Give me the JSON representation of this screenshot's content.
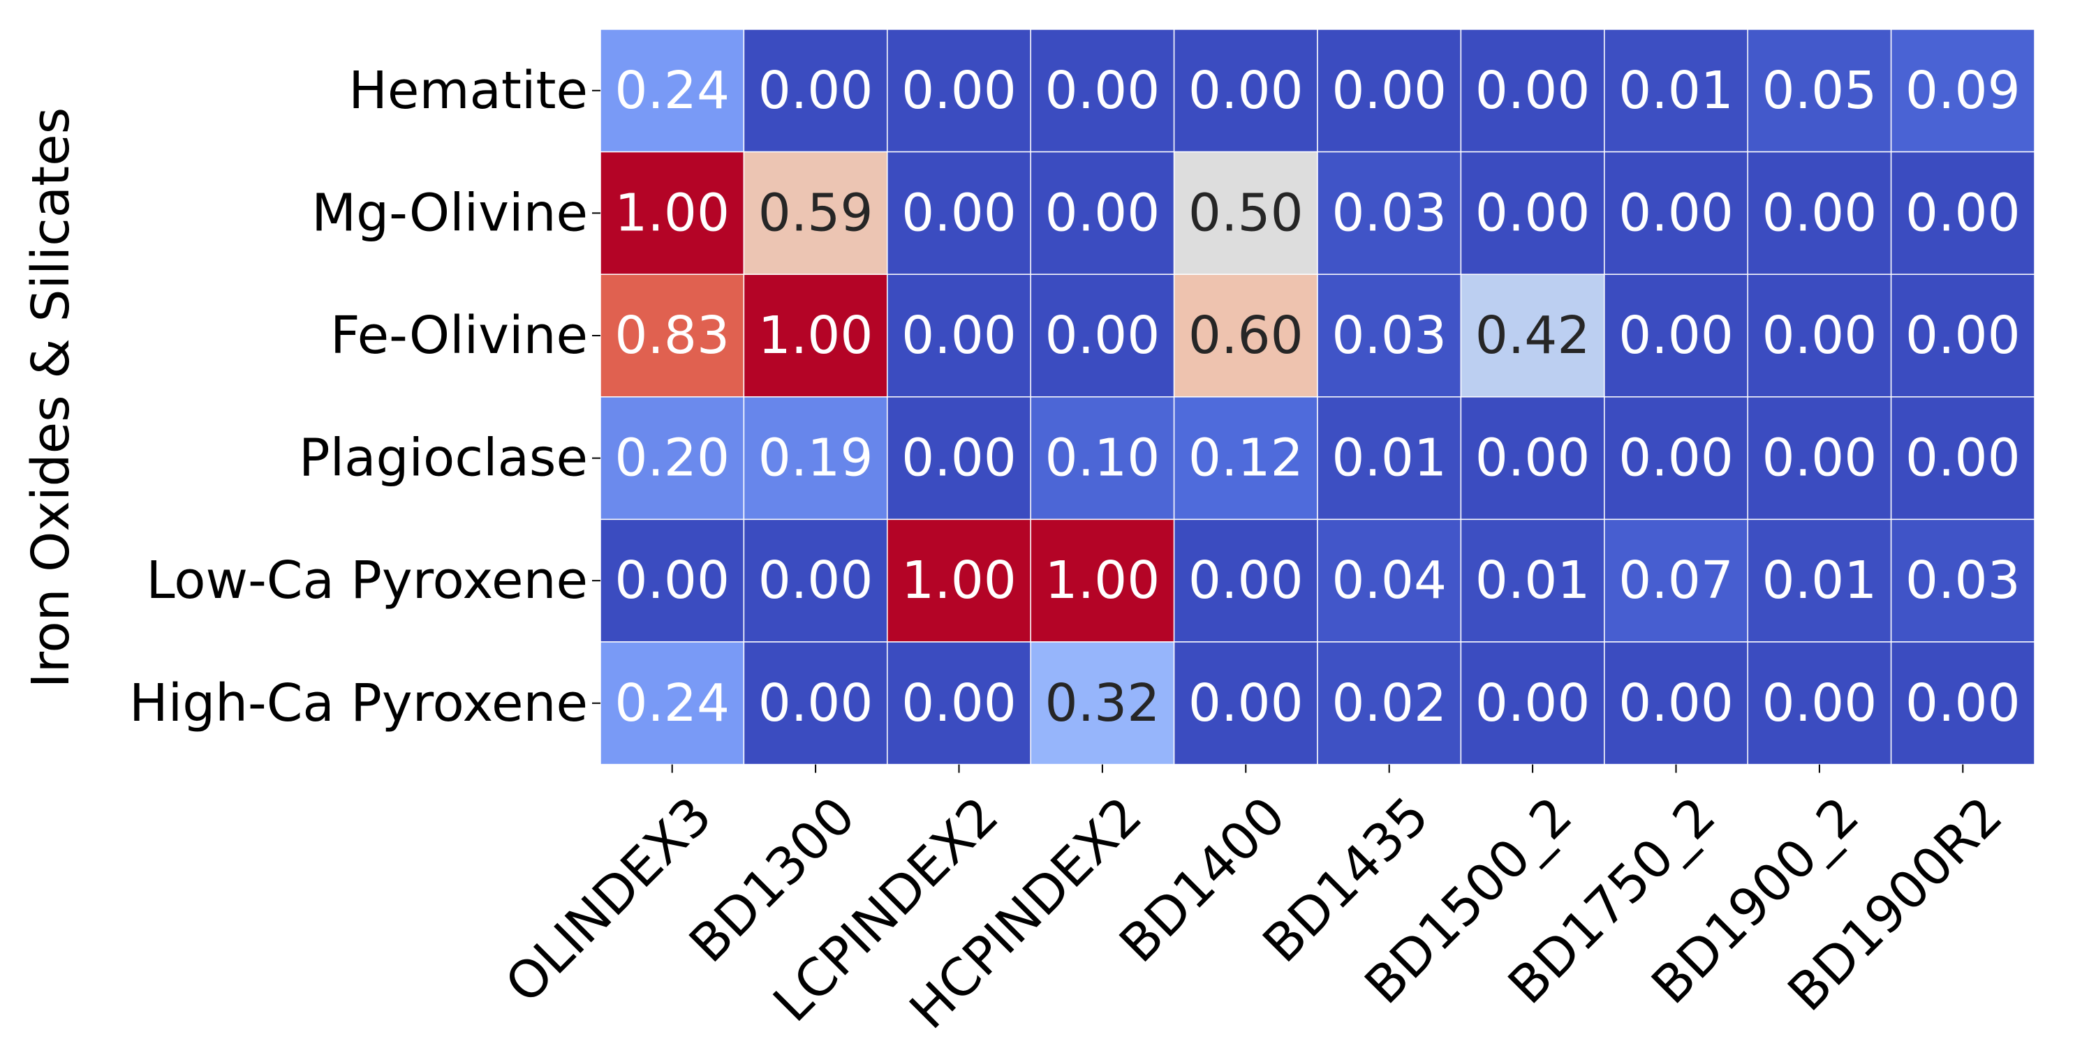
{
  "chart_data": {
    "type": "heatmap",
    "title": "",
    "xlabel": "",
    "ylabel": "Iron Oxides & Silicates",
    "columns": [
      "OLINDEX3",
      "BD1300",
      "LCPINDEX2",
      "HCPINDEX2",
      "BD1400",
      "BD1435",
      "BD1500_2",
      "BD1750_2",
      "BD1900_2",
      "BD1900R2"
    ],
    "rows": [
      "Hematite",
      "Mg-Olivine",
      "Fe-Olivine",
      "Plagioclase",
      "Low-Ca Pyroxene",
      "High-Ca Pyroxene"
    ],
    "values": [
      [
        0.24,
        0.0,
        0.0,
        0.0,
        0.0,
        0.0,
        0.0,
        0.01,
        0.05,
        0.09
      ],
      [
        1.0,
        0.59,
        0.0,
        0.0,
        0.5,
        0.03,
        0.0,
        0.0,
        0.0,
        0.0
      ],
      [
        0.83,
        1.0,
        0.0,
        0.0,
        0.6,
        0.03,
        0.42,
        0.0,
        0.0,
        0.0
      ],
      [
        0.2,
        0.19,
        0.0,
        0.1,
        0.12,
        0.01,
        0.0,
        0.0,
        0.0,
        0.0
      ],
      [
        0.0,
        0.0,
        1.0,
        1.0,
        0.0,
        0.04,
        0.01,
        0.07,
        0.01,
        0.03
      ],
      [
        0.24,
        0.0,
        0.0,
        0.32,
        0.0,
        0.02,
        0.0,
        0.0,
        0.0,
        0.0
      ]
    ],
    "value_format": "2 decimals",
    "vrange": [
      0,
      1
    ],
    "colormap": "coolwarm",
    "colorbar": false,
    "grid": false,
    "cell_border_color": "#ffffff",
    "xtick_rotation": 45
  }
}
